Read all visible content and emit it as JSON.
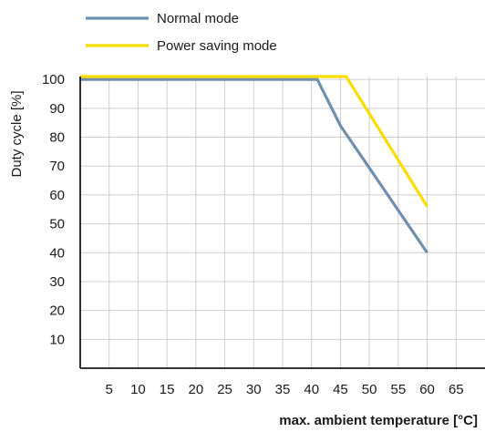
{
  "chart_data": {
    "type": "line",
    "title": "",
    "xlabel": "max. ambient temperature [°C]",
    "ylabel": "Duty cycle [%]",
    "xlim": [
      0,
      70
    ],
    "ylim": [
      0,
      101
    ],
    "x_ticks": [
      5,
      10,
      15,
      20,
      25,
      30,
      35,
      40,
      45,
      50,
      55,
      60,
      65
    ],
    "y_ticks": [
      10,
      20,
      30,
      40,
      50,
      60,
      70,
      80,
      90,
      100
    ],
    "grid": true,
    "legend": "top-center",
    "series": [
      {
        "name": "Normal mode",
        "color": "#6f8fae",
        "x": [
          0,
          41,
          45,
          60
        ],
        "y": [
          100,
          100,
          84,
          40
        ]
      },
      {
        "name": "Power saving mode",
        "color": "#f7dd00",
        "x": [
          0,
          46,
          60
        ],
        "y": [
          101,
          101,
          56
        ]
      }
    ]
  }
}
